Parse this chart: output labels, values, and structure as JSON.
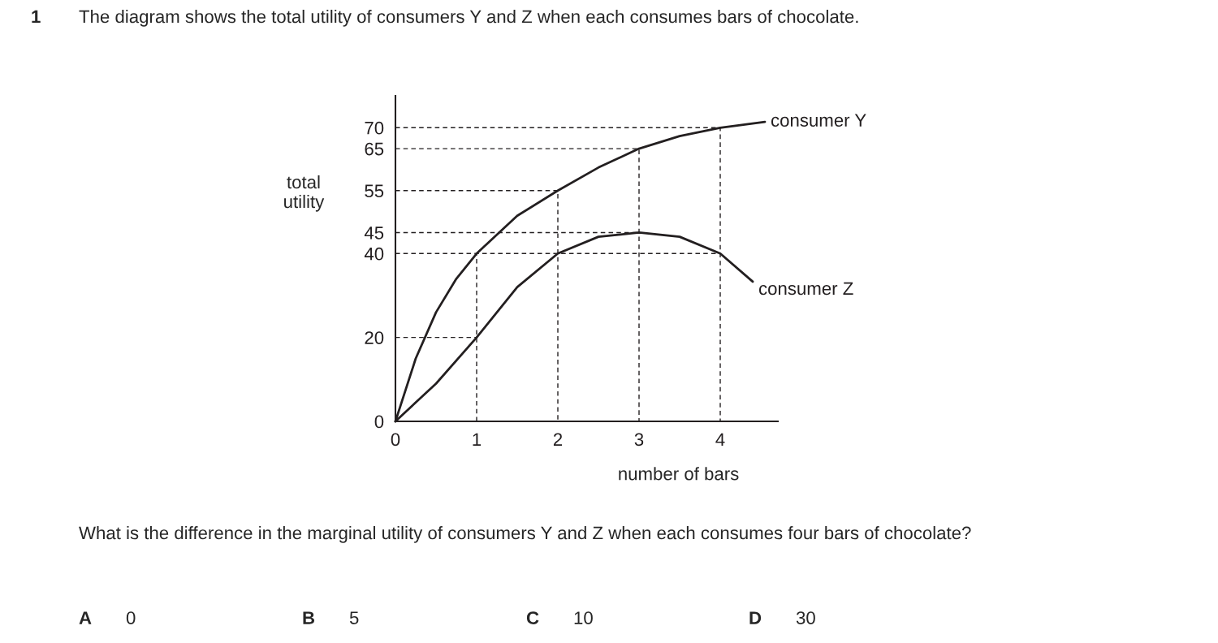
{
  "chart_data": {
    "type": "line",
    "title": "The diagram shows the total utility of consumers Y and Z when each consumes bars of chocolate.",
    "xlabel": "number of bars",
    "ylabel": "total\nutility",
    "xlim": [
      0,
      4.71
    ],
    "ylim": [
      0,
      77.6
    ],
    "xticks": [
      0,
      1,
      2,
      3,
      4
    ],
    "yticks": [
      0,
      20,
      40,
      45,
      55,
      65,
      70
    ],
    "grid": false,
    "legend": false,
    "marker": "none",
    "series": [
      {
        "name": "consumer Y",
        "color": "#231f20",
        "line_style": "solid",
        "x": [
          0,
          0.25,
          0.5,
          0.75,
          1,
          1.5,
          2,
          2.5,
          3,
          3.5,
          4,
          4.55
        ],
        "values": [
          0,
          15,
          26,
          34,
          40,
          49,
          55,
          60.5,
          65,
          68,
          70,
          71.4
        ]
      },
      {
        "name": "consumer Z",
        "color": "#231f20",
        "line_style": "solid",
        "x": [
          0,
          0.5,
          1,
          1.5,
          2,
          2.5,
          3,
          3.5,
          4,
          4.4
        ],
        "values": [
          0,
          9,
          20,
          32,
          40,
          44,
          45,
          44,
          40,
          33.3
        ]
      },
      {
        "color": "#231f20",
        "line_style": "dashed",
        "x": [
          0,
          4,
          4
        ],
        "values": [
          70,
          70,
          0
        ]
      },
      {
        "color": "#231f20",
        "line_style": "dashed",
        "x": [
          0,
          3,
          3
        ],
        "values": [
          65,
          65,
          0
        ]
      },
      {
        "color": "#231f20",
        "line_style": "dashed",
        "x": [
          0,
          2,
          2
        ],
        "values": [
          55,
          55,
          0
        ]
      },
      {
        "color": "#231f20",
        "line_style": "dashed",
        "x": [
          0,
          3
        ],
        "values": [
          45,
          45
        ]
      },
      {
        "color": "#231f20",
        "line_style": "dashed",
        "x": [
          0,
          4
        ],
        "values": [
          40,
          40
        ]
      },
      {
        "color": "#231f20",
        "line_style": "dashed",
        "x": [
          1,
          1
        ],
        "values": [
          0,
          40
        ]
      },
      {
        "color": "#231f20",
        "line_style": "dashed",
        "x": [
          0,
          1
        ],
        "values": [
          20,
          20
        ]
      }
    ],
    "annotations": [
      "1",
      "What is the difference in the marginal utility of consumers Y and Z when each consumes four bars of chocolate?",
      "A",
      "0",
      "B",
      "5",
      "C",
      "10",
      "D",
      "30"
    ]
  }
}
